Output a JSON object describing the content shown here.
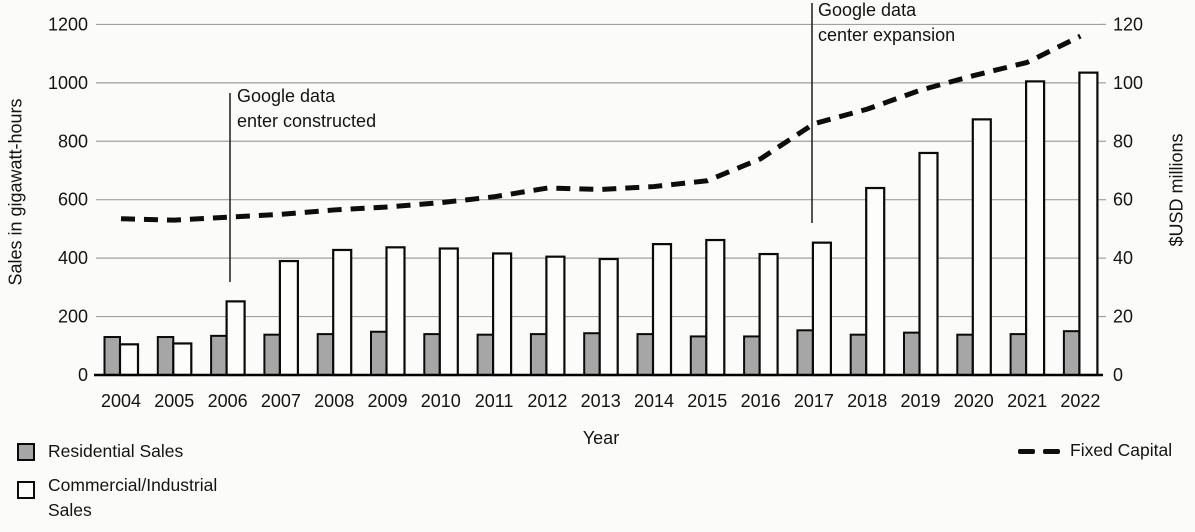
{
  "chart_data": {
    "type": "bar",
    "subtype": "grouped-bars-with-line-overlay",
    "x": {
      "label": "Year",
      "categories": [
        "2004",
        "2005",
        "2006",
        "2007",
        "2008",
        "2009",
        "2010",
        "2011",
        "2012",
        "2013",
        "2014",
        "2015",
        "2016",
        "2017",
        "2018",
        "2019",
        "2020",
        "2021",
        "2022"
      ]
    },
    "y_left": {
      "label": "Sales in gigawatt-hours",
      "ticks": [
        0,
        200,
        400,
        600,
        800,
        1000,
        1200
      ],
      "range": [
        0,
        1200
      ]
    },
    "y_right": {
      "label": "$USD millions",
      "ticks": [
        0,
        20,
        40,
        60,
        80,
        100,
        120
      ],
      "range": [
        0,
        120
      ]
    },
    "grid": true,
    "legend_position": "bottom",
    "series": [
      {
        "name": "Residential Sales",
        "type": "bar",
        "axis": "left",
        "values": [
          130,
          130,
          134,
          138,
          140,
          148,
          140,
          138,
          140,
          143,
          140,
          132,
          132,
          153,
          138,
          145,
          138,
          140,
          150
        ]
      },
      {
        "name": "Commercial/Industrial Sales",
        "type": "bar",
        "axis": "left",
        "values": [
          105,
          108,
          252,
          390,
          428,
          437,
          433,
          416,
          405,
          397,
          448,
          462,
          414,
          453,
          640,
          760,
          875,
          1005,
          1035
        ]
      },
      {
        "name": "Fixed Capital",
        "type": "line",
        "style": "dashed",
        "axis": "right",
        "values": [
          53.5,
          53,
          54,
          55,
          56.5,
          57.5,
          59,
          61,
          64,
          63.5,
          64.5,
          66.5,
          74,
          86,
          91,
          97.5,
          102.5,
          107,
          116
        ]
      }
    ],
    "annotations": [
      {
        "year": "2006",
        "line1": "Google data",
        "line2": "enter constructed"
      },
      {
        "year": "2017",
        "line1": "Google data",
        "line2": "center expansion"
      }
    ]
  },
  "legend": {
    "residential": "Residential Sales",
    "commercial_line1": "Commercial/Industrial",
    "commercial_line2": "Sales",
    "fixed_capital": "Fixed Capital"
  },
  "colors": {
    "background": "#fbfbf9",
    "residential_fill": "#a6a6a6",
    "commercial_fill": "#fdfdfc",
    "bar_stroke": "#0a0a0a",
    "line_color": "#0d0d0d",
    "gridline": "#a0a0a0",
    "annotation_line": "#2a2a2a",
    "text": "#141414"
  }
}
